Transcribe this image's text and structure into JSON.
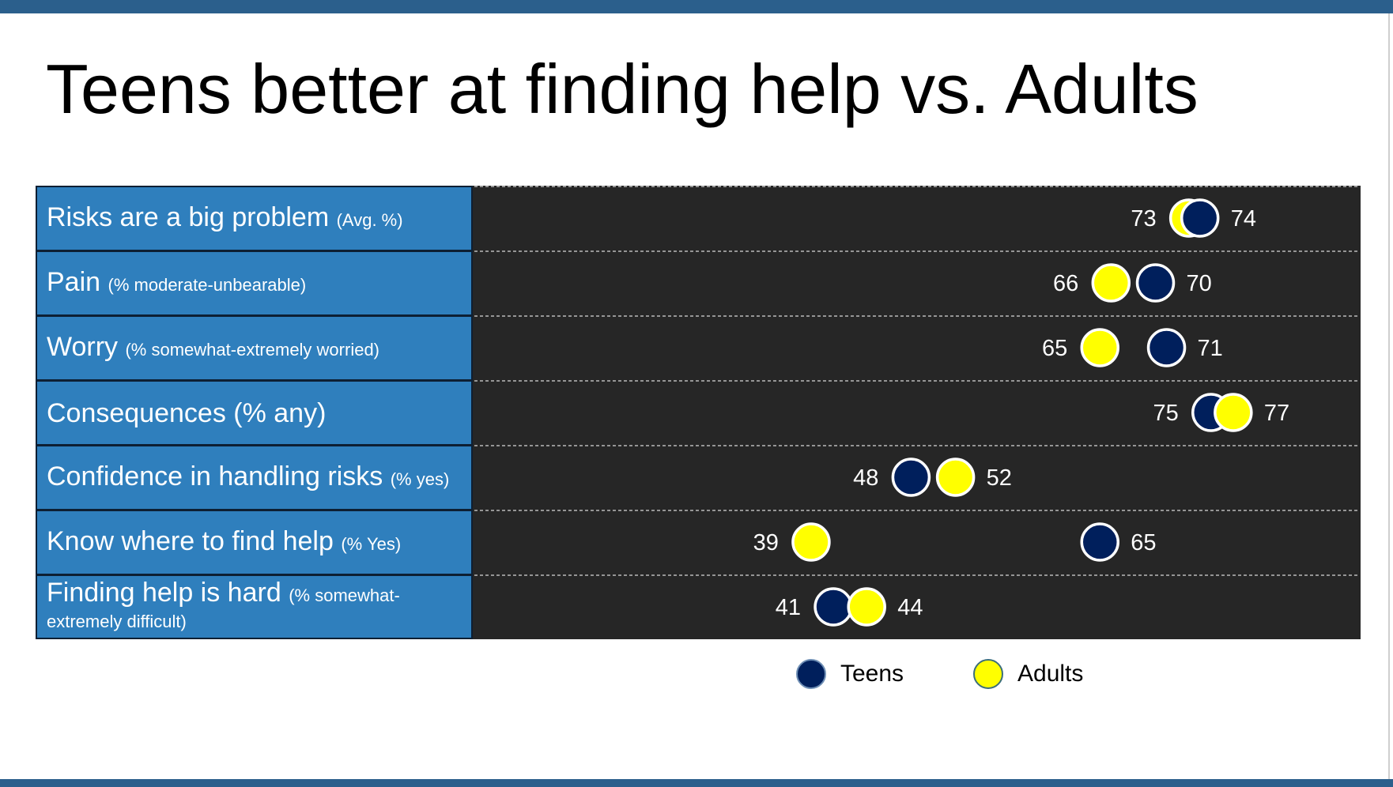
{
  "title": "Teens better at finding help vs. Adults",
  "colors": {
    "teens": "#001f5c",
    "adults": "#ffff00",
    "panel": "#262626",
    "label_bg": "#2f7fbd",
    "accent_bar": "#2b5f8c"
  },
  "chart_data": {
    "type": "scatter",
    "title": "Teens better at finding help vs. Adults",
    "categories": [
      {
        "label": "Risks are a big problem",
        "note": "(Avg. %)"
      },
      {
        "label": "Pain",
        "note": "(% moderate-unbearable)"
      },
      {
        "label": "Worry",
        "note": "(% somewhat-extremely worried)"
      },
      {
        "label": "Consequences (% any)",
        "note": ""
      },
      {
        "label": "Confidence in handling risks",
        "note": "(% yes)"
      },
      {
        "label": "Know where to find help",
        "note": "(% Yes)"
      },
      {
        "label": "Finding help is hard",
        "note": "(% somewhat-extremely difficult)"
      }
    ],
    "series": [
      {
        "name": "Teens",
        "color": "#001f5c",
        "values": [
          74,
          70,
          71,
          75,
          48,
          65,
          41
        ]
      },
      {
        "name": "Adults",
        "color": "#ffff00",
        "values": [
          73,
          66,
          65,
          77,
          52,
          39,
          44
        ]
      }
    ],
    "xlim": [
      0,
      100
    ],
    "legend": "bottom-center",
    "grid": true
  }
}
